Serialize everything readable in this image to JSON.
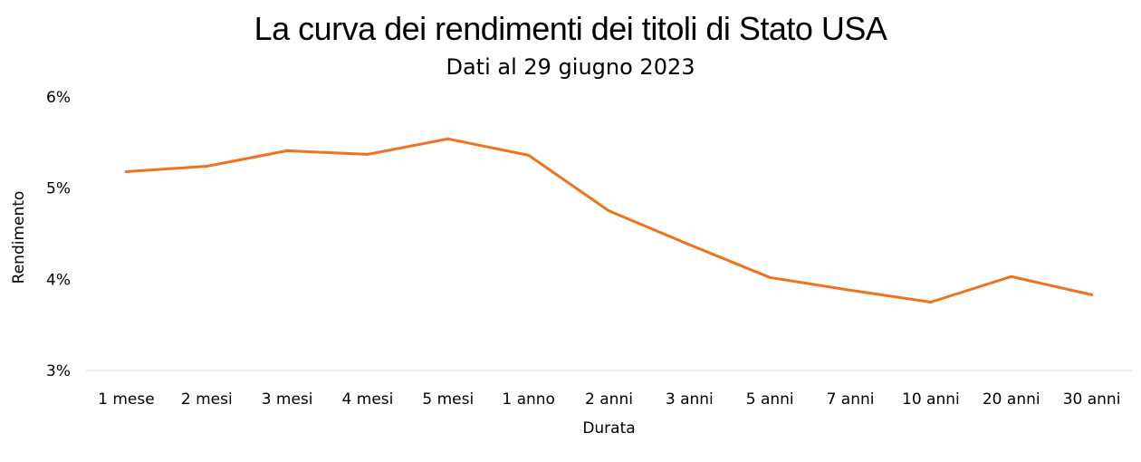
{
  "chart_data": {
    "type": "line",
    "title": "La curva dei rendimenti dei titoli di Stato USA",
    "subtitle": "Dati al 29 giugno 2023",
    "xlabel": "Durata",
    "ylabel": "Rendimento",
    "categories": [
      "1 mese",
      "2 mesi",
      "3 mesi",
      "4 mesi",
      "5 mesi",
      "1 anno",
      "2 anni",
      "3 anni",
      "5 anni",
      "7 anni",
      "10 anni",
      "20 anni",
      "30 anni"
    ],
    "series": [
      {
        "values": [
          5.18,
          5.24,
          5.41,
          5.37,
          5.54,
          5.36,
          4.75,
          4.38,
          4.02,
          3.88,
          3.75,
          4.03,
          3.83
        ]
      }
    ],
    "ylim": [
      3,
      6
    ],
    "yticks": [
      3,
      4,
      5,
      6
    ],
    "ytick_labels": [
      "3%",
      "4%",
      "5%",
      "6%"
    ],
    "grid": false,
    "legend": "none",
    "colors": {
      "line": "#f2711c",
      "axis": "#d9d9d9",
      "text": "#000000"
    }
  }
}
